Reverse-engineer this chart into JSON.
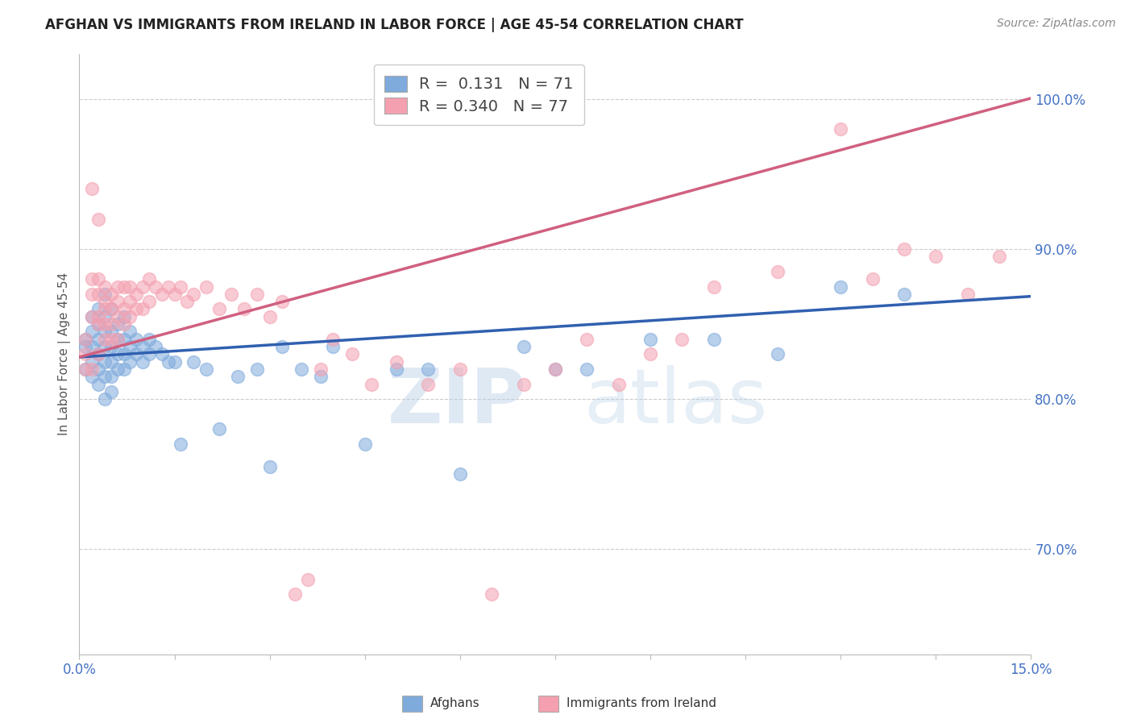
{
  "title": "AFGHAN VS IMMIGRANTS FROM IRELAND IN LABOR FORCE | AGE 45-54 CORRELATION CHART",
  "source": "Source: ZipAtlas.com",
  "ylabel": "In Labor Force | Age 45-54",
  "xlim": [
    0.0,
    0.15
  ],
  "ylim": [
    0.63,
    1.03
  ],
  "yticks": [
    0.7,
    0.8,
    0.9,
    1.0
  ],
  "xticks": [
    0.0,
    0.015,
    0.03,
    0.045,
    0.06,
    0.075,
    0.09,
    0.105,
    0.12,
    0.135,
    0.15
  ],
  "afghan_color": "#7faadc",
  "ireland_color": "#f4a0b0",
  "afghan_line_color": "#3060b0",
  "ireland_line_color": "#d06080",
  "afghan_R": 0.131,
  "afghan_N": 71,
  "ireland_R": 0.34,
  "ireland_N": 77,
  "watermark": "ZIPatlas",
  "background_color": "#ffffff",
  "grid_color": "#cccccc",
  "legend_R_color": "#4472c4",
  "legend_N_color": "#4472c4",
  "afghan_scatter_x": [
    0.001,
    0.001,
    0.001,
    0.002,
    0.002,
    0.002,
    0.002,
    0.002,
    0.003,
    0.003,
    0.003,
    0.003,
    0.003,
    0.003,
    0.004,
    0.004,
    0.004,
    0.004,
    0.004,
    0.004,
    0.004,
    0.005,
    0.005,
    0.005,
    0.005,
    0.005,
    0.005,
    0.006,
    0.006,
    0.006,
    0.006,
    0.007,
    0.007,
    0.007,
    0.007,
    0.008,
    0.008,
    0.008,
    0.009,
    0.009,
    0.01,
    0.01,
    0.011,
    0.011,
    0.012,
    0.013,
    0.014,
    0.015,
    0.016,
    0.018,
    0.02,
    0.022,
    0.025,
    0.028,
    0.03,
    0.032,
    0.035,
    0.038,
    0.04,
    0.045,
    0.05,
    0.055,
    0.06,
    0.07,
    0.075,
    0.08,
    0.09,
    0.1,
    0.11,
    0.12,
    0.13
  ],
  "afghan_scatter_y": [
    0.84,
    0.835,
    0.82,
    0.855,
    0.845,
    0.835,
    0.825,
    0.815,
    0.86,
    0.85,
    0.84,
    0.83,
    0.82,
    0.81,
    0.87,
    0.855,
    0.845,
    0.835,
    0.825,
    0.815,
    0.8,
    0.86,
    0.845,
    0.835,
    0.825,
    0.815,
    0.805,
    0.85,
    0.84,
    0.83,
    0.82,
    0.855,
    0.84,
    0.83,
    0.82,
    0.845,
    0.835,
    0.825,
    0.84,
    0.83,
    0.835,
    0.825,
    0.84,
    0.83,
    0.835,
    0.83,
    0.825,
    0.825,
    0.77,
    0.825,
    0.82,
    0.78,
    0.815,
    0.82,
    0.755,
    0.835,
    0.82,
    0.815,
    0.835,
    0.77,
    0.82,
    0.82,
    0.75,
    0.835,
    0.82,
    0.82,
    0.84,
    0.84,
    0.83,
    0.875,
    0.87
  ],
  "ireland_scatter_x": [
    0.001,
    0.001,
    0.001,
    0.002,
    0.002,
    0.002,
    0.002,
    0.002,
    0.003,
    0.003,
    0.003,
    0.003,
    0.003,
    0.003,
    0.004,
    0.004,
    0.004,
    0.004,
    0.004,
    0.005,
    0.005,
    0.005,
    0.005,
    0.006,
    0.006,
    0.006,
    0.006,
    0.007,
    0.007,
    0.007,
    0.008,
    0.008,
    0.008,
    0.009,
    0.009,
    0.01,
    0.01,
    0.011,
    0.011,
    0.012,
    0.013,
    0.014,
    0.015,
    0.016,
    0.017,
    0.018,
    0.02,
    0.022,
    0.024,
    0.026,
    0.028,
    0.03,
    0.032,
    0.034,
    0.036,
    0.038,
    0.04,
    0.043,
    0.046,
    0.05,
    0.055,
    0.06,
    0.065,
    0.07,
    0.075,
    0.08,
    0.085,
    0.09,
    0.095,
    0.1,
    0.11,
    0.12,
    0.125,
    0.13,
    0.135,
    0.14,
    0.145
  ],
  "ireland_scatter_y": [
    0.84,
    0.83,
    0.82,
    0.855,
    0.87,
    0.88,
    0.94,
    0.82,
    0.855,
    0.87,
    0.92,
    0.88,
    0.85,
    0.83,
    0.865,
    0.875,
    0.86,
    0.85,
    0.84,
    0.87,
    0.86,
    0.85,
    0.84,
    0.875,
    0.865,
    0.855,
    0.84,
    0.875,
    0.86,
    0.85,
    0.875,
    0.865,
    0.855,
    0.87,
    0.86,
    0.875,
    0.86,
    0.88,
    0.865,
    0.875,
    0.87,
    0.875,
    0.87,
    0.875,
    0.865,
    0.87,
    0.875,
    0.86,
    0.87,
    0.86,
    0.87,
    0.855,
    0.865,
    0.67,
    0.68,
    0.82,
    0.84,
    0.83,
    0.81,
    0.825,
    0.81,
    0.82,
    0.67,
    0.81,
    0.82,
    0.84,
    0.81,
    0.83,
    0.84,
    0.875,
    0.885,
    0.98,
    0.88,
    0.9,
    0.895,
    0.87,
    0.895
  ]
}
